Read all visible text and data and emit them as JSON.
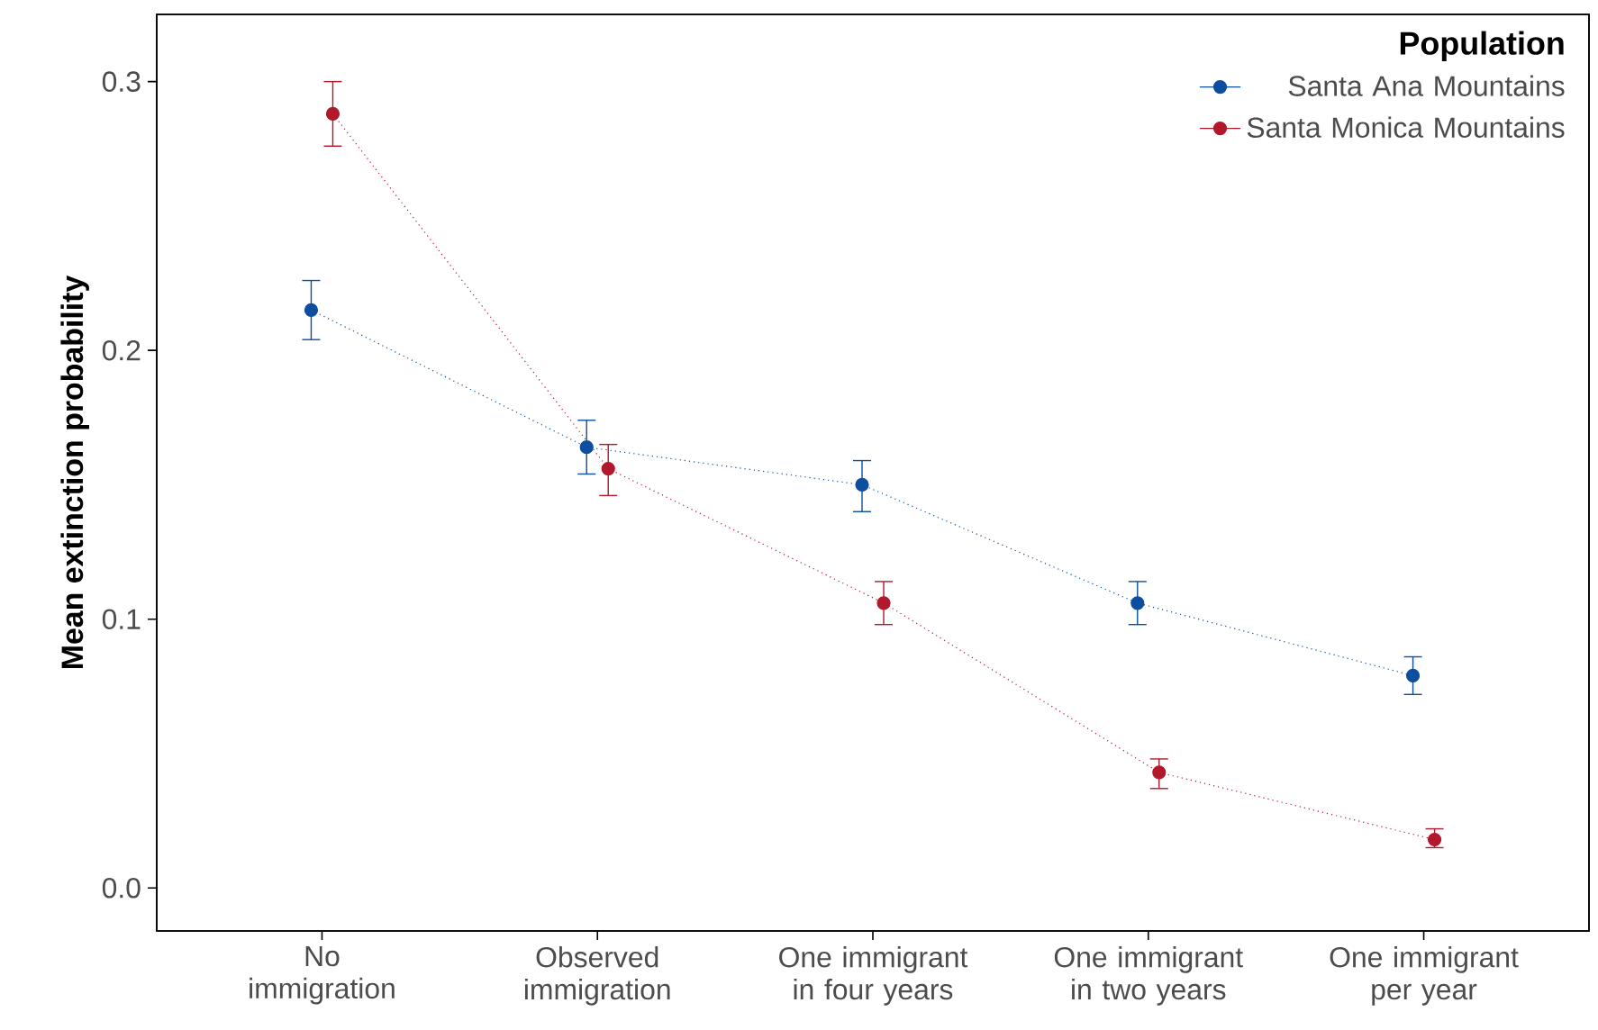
{
  "chart_data": {
    "type": "line",
    "ylabel": "Mean extinction probability",
    "legend_title": "Population",
    "categories": [
      "No immigration",
      "Observed immigration",
      "One immigrant in four years",
      "One immigrant in two years",
      "One immigrant per year"
    ],
    "series": [
      {
        "name": "Santa Ana Mountains",
        "color": "#0d4f9e",
        "values": [
          0.215,
          0.164,
          0.15,
          0.106,
          0.079
        ],
        "errors": [
          [
            0.204,
            0.226
          ],
          [
            0.154,
            0.174
          ],
          [
            0.14,
            0.159
          ],
          [
            0.098,
            0.114
          ],
          [
            0.072,
            0.086
          ]
        ]
      },
      {
        "name": "Santa Monica Mountains",
        "color": "#b2182b",
        "values": [
          0.288,
          0.156,
          0.106,
          0.043,
          0.018
        ],
        "errors": [
          [
            0.276,
            0.3
          ],
          [
            0.146,
            0.165
          ],
          [
            0.098,
            0.114
          ],
          [
            0.037,
            0.048
          ],
          [
            0.015,
            0.022
          ]
        ]
      }
    ],
    "ylim": [
      -0.016,
      0.325
    ],
    "yticks": [
      {
        "value": 0,
        "label": "0.0"
      },
      0.1,
      0.2,
      0.3
    ],
    "grid": false,
    "legend": "top right",
    "marker": "circle",
    "line_style": "dotted"
  }
}
